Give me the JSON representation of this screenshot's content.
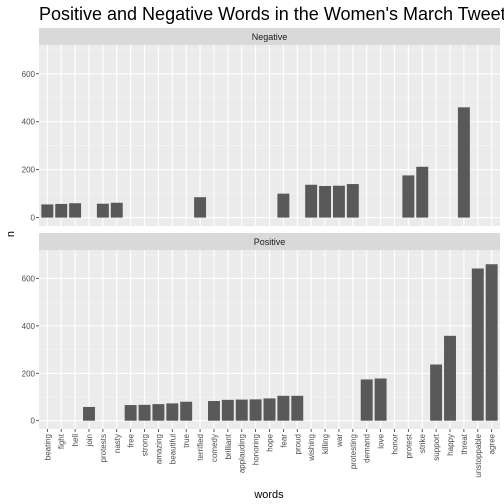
{
  "chart_data": {
    "type": "bar",
    "title": "Positive and Negative Words in the Women's March Tweets",
    "xlabel": "words",
    "ylabel": "n",
    "ylim": [
      0,
      700
    ],
    "yticks": [
      0,
      200,
      400,
      600
    ],
    "grid": true,
    "bar_color": "#595959",
    "panel_background": "#ebebeb",
    "strip_background": "#d9d9d9",
    "categories": [
      "beating",
      "fight",
      "hell",
      "join",
      "protests",
      "nasty",
      "free",
      "strong",
      "amazing",
      "beautiful",
      "true",
      "terrified",
      "comedy",
      "brilliant",
      "applauding",
      "honoring",
      "hope",
      "fear",
      "proud",
      "wishing",
      "killing",
      "war",
      "protesting",
      "demand",
      "love",
      "honor",
      "protest",
      "strike",
      "support",
      "happy",
      "threat",
      "unstoppable",
      "agree"
    ],
    "panels": [
      {
        "name": "Negative",
        "values": {
          "beating": 55,
          "fight": 57,
          "hell": 60,
          "protests": 58,
          "nasty": 62,
          "terrified": 85,
          "fear": 100,
          "killing": 132,
          "war": 133,
          "wishing": 137,
          "protesting": 140,
          "protest": 176,
          "strike": 212,
          "threat": 460
        }
      },
      {
        "name": "Positive",
        "values": {
          "join": 58,
          "free": 66,
          "strong": 67,
          "amazing": 70,
          "beautiful": 73,
          "true": 80,
          "comedy": 83,
          "brilliant": 88,
          "applauding": 89,
          "honoring": 90,
          "hope": 94,
          "proud": 105,
          "fear": 105,
          "demand": 174,
          "love": 178,
          "support": 237,
          "happy": 358,
          "unstoppable": 642,
          "agree": 660
        }
      }
    ]
  }
}
